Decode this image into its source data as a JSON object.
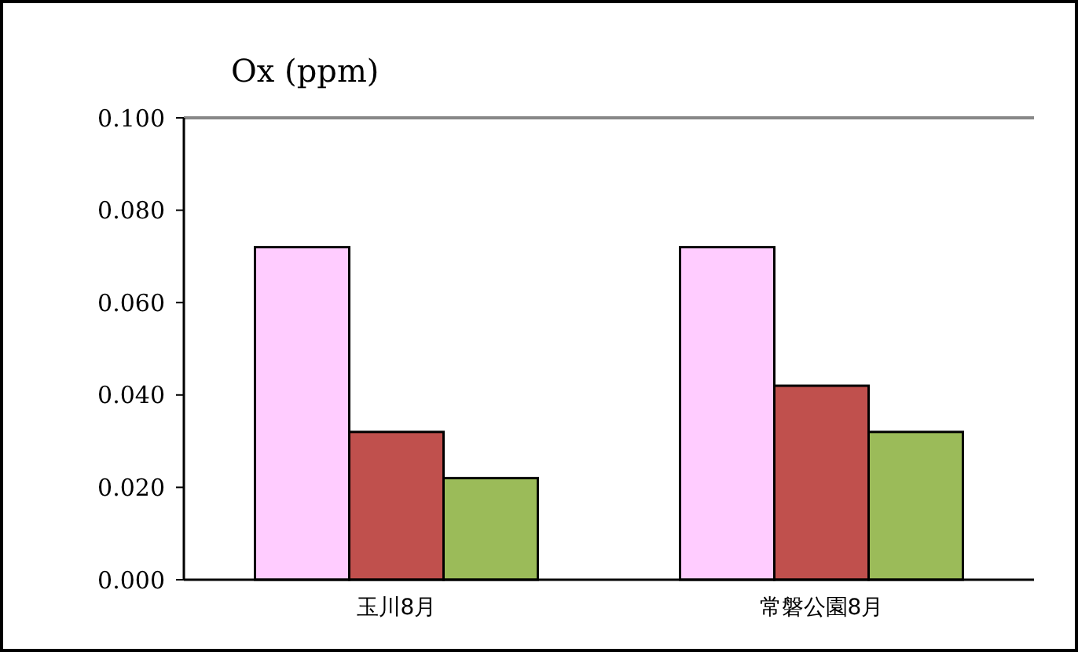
{
  "chart_data": {
    "type": "bar",
    "ylabel": "Ox (ppm)",
    "categories": [
      "玉川8月",
      "常磐公園8月"
    ],
    "series": [
      {
        "color": "#ffccff",
        "values": [
          0.072,
          0.072
        ]
      },
      {
        "color": "#c0504d",
        "values": [
          0.032,
          0.042
        ]
      },
      {
        "color": "#9bbb59",
        "values": [
          0.022,
          0.032
        ]
      }
    ],
    "ylim": [
      0,
      0.1
    ],
    "yticks": [
      {
        "value": 0,
        "label": "0.000"
      },
      {
        "value": 0.02,
        "label": "0.020"
      },
      {
        "value": 0.04,
        "label": "0.040"
      },
      {
        "value": 0.06,
        "label": "0.060"
      },
      {
        "value": 0.08,
        "label": "0.080"
      },
      {
        "value": 0.1,
        "label": "0.100"
      }
    ],
    "grid": false
  }
}
